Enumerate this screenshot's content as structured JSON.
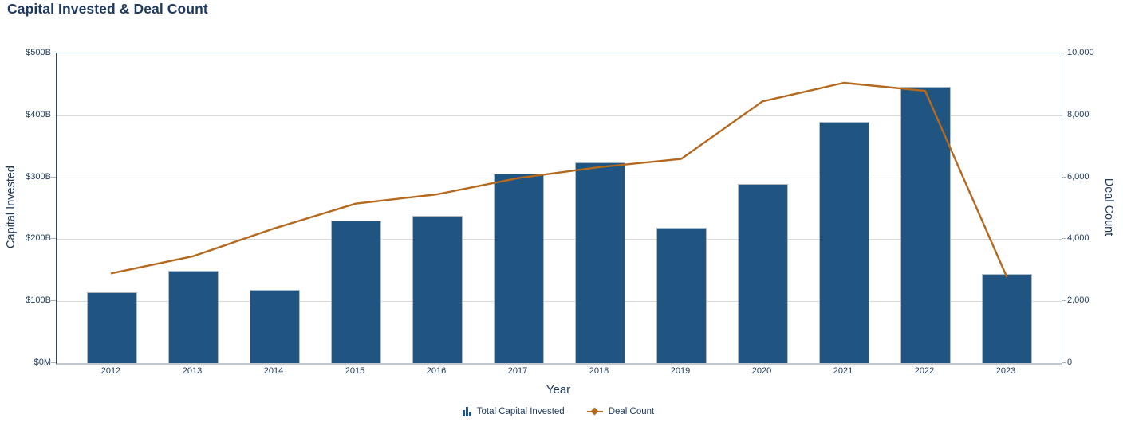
{
  "page": {
    "title": "Capital Invested & Deal Count"
  },
  "chart_data": {
    "type": "bar",
    "combo": "bar+line",
    "title": "Capital Invested & Deal Count",
    "xlabel": "Year",
    "categories": [
      "2012",
      "2013",
      "2014",
      "2015",
      "2016",
      "2017",
      "2018",
      "2019",
      "2020",
      "2021",
      "2022",
      "2023"
    ],
    "series": [
      {
        "name": "Total Capital Invested",
        "type": "bar",
        "axis": "left",
        "unit": "USD billions",
        "color": "#1F5580",
        "values": [
          115,
          149,
          118,
          230,
          238,
          306,
          324,
          219,
          289,
          390,
          446,
          144
        ]
      },
      {
        "name": "Deal Count",
        "type": "line",
        "axis": "right",
        "color": "#B4691F",
        "values": [
          2900,
          3450,
          4350,
          5150,
          5450,
          5975,
          6330,
          6590,
          8450,
          9050,
          8790,
          2800
        ]
      }
    ],
    "axes": {
      "left": {
        "label": "Capital Invested",
        "lim": [
          0,
          500
        ],
        "tick_values": [
          0,
          100,
          200,
          300,
          400,
          500
        ],
        "tick_labels": [
          "$0M",
          "$100B",
          "$200B",
          "$300B",
          "$400B",
          "$500B"
        ]
      },
      "right": {
        "label": "Deal Count",
        "lim": [
          0,
          10000
        ],
        "tick_values": [
          0,
          2000,
          4000,
          6000,
          8000,
          10000
        ],
        "tick_labels": [
          "0",
          "2,000",
          "4,000",
          "6,000",
          "8,000",
          "10,000"
        ]
      }
    },
    "grid": true,
    "legend_position": "bottom"
  },
  "legend": {
    "items": [
      {
        "label": "Total Capital Invested",
        "icon": "bar-chart-icon"
      },
      {
        "label": "Deal Count",
        "icon": "line-diamond-icon"
      }
    ]
  },
  "colors": {
    "title_text": "#1E3A5F",
    "axis_text": "#1E3A5F",
    "bar": "#1F5580",
    "line": "#B4691F",
    "gridline": "#D9D9D9",
    "plot_border": "#2E4B5A",
    "zero_line": "#C2C9CE",
    "background": "#FFFFFF"
  }
}
